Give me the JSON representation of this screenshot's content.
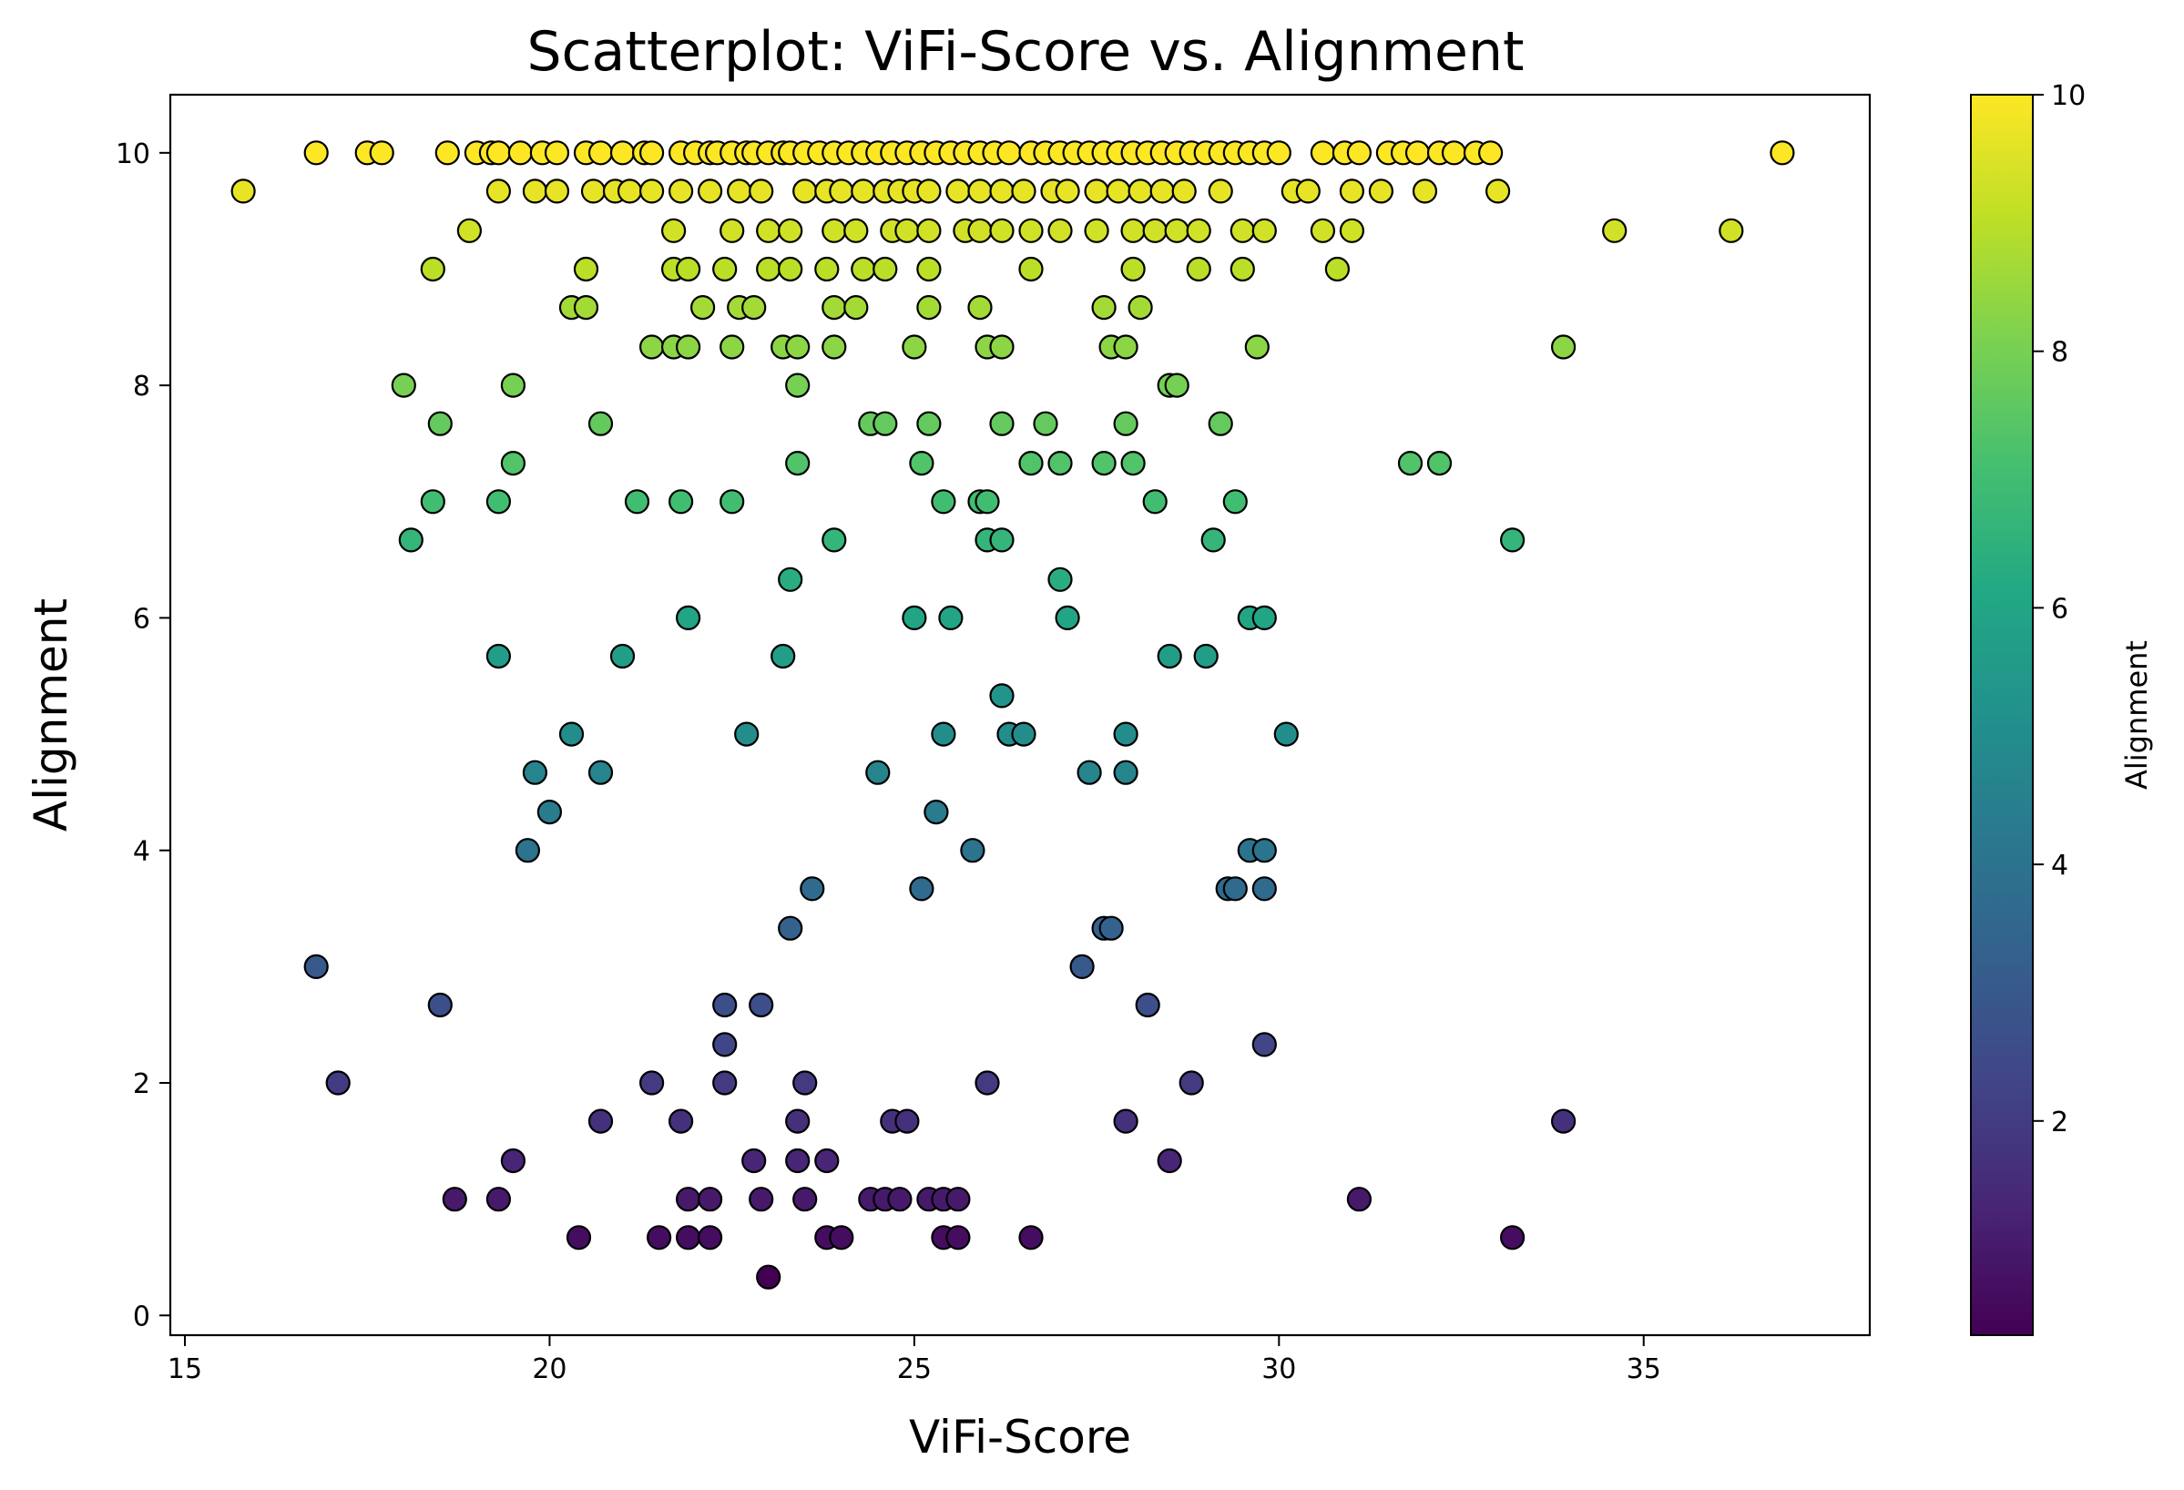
{
  "chart_data": {
    "type": "scatter",
    "title": "Scatterplot: ViFi-Score vs. Alignment",
    "xlabel": "ViFi-Score",
    "ylabel": "Alignment",
    "xlim": [
      14.8,
      38.1
    ],
    "ylim": [
      -0.17,
      10.5
    ],
    "xticks": [
      "15",
      "20",
      "25",
      "30",
      "35"
    ],
    "yticks": [
      "0",
      "2",
      "4",
      "6",
      "8",
      "10"
    ],
    "colorbar": {
      "label": "Alignment",
      "colormap": "viridis",
      "range": [
        0.33,
        10
      ],
      "ticks": [
        "2",
        "4",
        "6",
        "8",
        "10"
      ]
    },
    "marker_edge_color": "#000000",
    "grid": false,
    "points": [
      [
        15.8,
        9.67
      ],
      [
        16.8,
        10
      ],
      [
        17.5,
        10
      ],
      [
        17.7,
        10
      ],
      [
        18.6,
        10
      ],
      [
        19.0,
        10
      ],
      [
        19.2,
        10
      ],
      [
        19.3,
        10
      ],
      [
        19.6,
        10
      ],
      [
        19.9,
        10
      ],
      [
        20.1,
        10
      ],
      [
        20.5,
        10
      ],
      [
        20.7,
        10
      ],
      [
        21.0,
        10
      ],
      [
        21.3,
        10
      ],
      [
        21.4,
        10
      ],
      [
        21.8,
        10
      ],
      [
        22.0,
        10
      ],
      [
        22.2,
        10
      ],
      [
        22.3,
        10
      ],
      [
        22.5,
        10
      ],
      [
        22.7,
        10
      ],
      [
        22.8,
        10
      ],
      [
        23.0,
        10
      ],
      [
        23.2,
        10
      ],
      [
        23.3,
        10
      ],
      [
        23.5,
        10
      ],
      [
        23.7,
        10
      ],
      [
        23.9,
        10
      ],
      [
        24.1,
        10
      ],
      [
        24.3,
        10
      ],
      [
        24.5,
        10
      ],
      [
        24.7,
        10
      ],
      [
        24.9,
        10
      ],
      [
        25.1,
        10
      ],
      [
        25.3,
        10
      ],
      [
        25.5,
        10
      ],
      [
        25.7,
        10
      ],
      [
        25.9,
        10
      ],
      [
        26.1,
        10
      ],
      [
        26.3,
        10
      ],
      [
        26.6,
        10
      ],
      [
        26.8,
        10
      ],
      [
        27.0,
        10
      ],
      [
        27.2,
        10
      ],
      [
        27.4,
        10
      ],
      [
        27.6,
        10
      ],
      [
        27.8,
        10
      ],
      [
        28.0,
        10
      ],
      [
        28.2,
        10
      ],
      [
        28.4,
        10
      ],
      [
        28.6,
        10
      ],
      [
        28.8,
        10
      ],
      [
        29.0,
        10
      ],
      [
        29.2,
        10
      ],
      [
        29.4,
        10
      ],
      [
        29.6,
        10
      ],
      [
        29.8,
        10
      ],
      [
        30.0,
        10
      ],
      [
        30.6,
        10
      ],
      [
        30.9,
        10
      ],
      [
        31.1,
        10
      ],
      [
        31.5,
        10
      ],
      [
        31.7,
        10
      ],
      [
        31.9,
        10
      ],
      [
        32.2,
        10
      ],
      [
        32.4,
        10
      ],
      [
        32.7,
        10
      ],
      [
        32.9,
        10
      ],
      [
        36.9,
        10
      ],
      [
        19.3,
        9.67
      ],
      [
        19.8,
        9.67
      ],
      [
        20.1,
        9.67
      ],
      [
        20.6,
        9.67
      ],
      [
        20.9,
        9.67
      ],
      [
        21.1,
        9.67
      ],
      [
        21.4,
        9.67
      ],
      [
        21.8,
        9.67
      ],
      [
        22.2,
        9.67
      ],
      [
        22.6,
        9.67
      ],
      [
        22.9,
        9.67
      ],
      [
        23.5,
        9.67
      ],
      [
        23.8,
        9.67
      ],
      [
        24.0,
        9.67
      ],
      [
        24.3,
        9.67
      ],
      [
        24.6,
        9.67
      ],
      [
        24.8,
        9.67
      ],
      [
        25.0,
        9.67
      ],
      [
        25.2,
        9.67
      ],
      [
        25.6,
        9.67
      ],
      [
        25.9,
        9.67
      ],
      [
        26.2,
        9.67
      ],
      [
        26.5,
        9.67
      ],
      [
        26.9,
        9.67
      ],
      [
        27.1,
        9.67
      ],
      [
        27.5,
        9.67
      ],
      [
        27.8,
        9.67
      ],
      [
        28.1,
        9.67
      ],
      [
        28.4,
        9.67
      ],
      [
        28.7,
        9.67
      ],
      [
        29.2,
        9.67
      ],
      [
        30.2,
        9.67
      ],
      [
        30.4,
        9.67
      ],
      [
        31.0,
        9.67
      ],
      [
        31.4,
        9.67
      ],
      [
        32.0,
        9.67
      ],
      [
        33.0,
        9.67
      ],
      [
        18.9,
        9.33
      ],
      [
        21.7,
        9.33
      ],
      [
        22.5,
        9.33
      ],
      [
        23.0,
        9.33
      ],
      [
        23.3,
        9.33
      ],
      [
        23.9,
        9.33
      ],
      [
        24.2,
        9.33
      ],
      [
        24.7,
        9.33
      ],
      [
        24.9,
        9.33
      ],
      [
        25.2,
        9.33
      ],
      [
        25.7,
        9.33
      ],
      [
        25.9,
        9.33
      ],
      [
        26.2,
        9.33
      ],
      [
        26.6,
        9.33
      ],
      [
        27.0,
        9.33
      ],
      [
        27.5,
        9.33
      ],
      [
        28.0,
        9.33
      ],
      [
        28.3,
        9.33
      ],
      [
        28.6,
        9.33
      ],
      [
        28.9,
        9.33
      ],
      [
        29.5,
        9.33
      ],
      [
        29.8,
        9.33
      ],
      [
        30.6,
        9.33
      ],
      [
        31.0,
        9.33
      ],
      [
        34.6,
        9.33
      ],
      [
        36.2,
        9.33
      ],
      [
        18.4,
        9.0
      ],
      [
        20.5,
        9.0
      ],
      [
        21.7,
        9.0
      ],
      [
        21.9,
        9.0
      ],
      [
        22.4,
        9.0
      ],
      [
        23.0,
        9.0
      ],
      [
        23.3,
        9.0
      ],
      [
        23.8,
        9.0
      ],
      [
        24.3,
        9.0
      ],
      [
        24.6,
        9.0
      ],
      [
        25.2,
        9.0
      ],
      [
        26.6,
        9.0
      ],
      [
        28.0,
        9.0
      ],
      [
        28.9,
        9.0
      ],
      [
        29.5,
        9.0
      ],
      [
        30.8,
        9.0
      ],
      [
        20.3,
        8.67
      ],
      [
        20.5,
        8.67
      ],
      [
        22.1,
        8.67
      ],
      [
        22.6,
        8.67
      ],
      [
        22.8,
        8.67
      ],
      [
        23.9,
        8.67
      ],
      [
        24.2,
        8.67
      ],
      [
        25.2,
        8.67
      ],
      [
        25.9,
        8.67
      ],
      [
        27.6,
        8.67
      ],
      [
        28.1,
        8.67
      ],
      [
        21.4,
        8.33
      ],
      [
        21.7,
        8.33
      ],
      [
        21.9,
        8.33
      ],
      [
        22.5,
        8.33
      ],
      [
        23.2,
        8.33
      ],
      [
        23.4,
        8.33
      ],
      [
        23.9,
        8.33
      ],
      [
        25.0,
        8.33
      ],
      [
        26.0,
        8.33
      ],
      [
        26.2,
        8.33
      ],
      [
        27.7,
        8.33
      ],
      [
        27.9,
        8.33
      ],
      [
        29.7,
        8.33
      ],
      [
        33.9,
        8.33
      ],
      [
        18.0,
        8.0
      ],
      [
        19.5,
        8.0
      ],
      [
        23.4,
        8.0
      ],
      [
        28.5,
        8.0
      ],
      [
        28.6,
        8.0
      ],
      [
        18.5,
        7.67
      ],
      [
        20.7,
        7.67
      ],
      [
        24.4,
        7.67
      ],
      [
        24.6,
        7.67
      ],
      [
        25.2,
        7.67
      ],
      [
        26.2,
        7.67
      ],
      [
        26.8,
        7.67
      ],
      [
        27.9,
        7.67
      ],
      [
        29.2,
        7.67
      ],
      [
        19.5,
        7.33
      ],
      [
        23.4,
        7.33
      ],
      [
        25.1,
        7.33
      ],
      [
        26.6,
        7.33
      ],
      [
        27.0,
        7.33
      ],
      [
        27.6,
        7.33
      ],
      [
        28.0,
        7.33
      ],
      [
        31.8,
        7.33
      ],
      [
        32.2,
        7.33
      ],
      [
        18.4,
        7.0
      ],
      [
        19.3,
        7.0
      ],
      [
        21.2,
        7.0
      ],
      [
        21.8,
        7.0
      ],
      [
        22.5,
        7.0
      ],
      [
        25.4,
        7.0
      ],
      [
        25.9,
        7.0
      ],
      [
        26.0,
        7.0
      ],
      [
        28.3,
        7.0
      ],
      [
        29.4,
        7.0
      ],
      [
        18.1,
        6.67
      ],
      [
        23.9,
        6.67
      ],
      [
        26.0,
        6.67
      ],
      [
        26.2,
        6.67
      ],
      [
        29.1,
        6.67
      ],
      [
        33.2,
        6.67
      ],
      [
        23.3,
        6.33
      ],
      [
        27.0,
        6.33
      ],
      [
        21.9,
        6.0
      ],
      [
        25.0,
        6.0
      ],
      [
        25.5,
        6.0
      ],
      [
        27.1,
        6.0
      ],
      [
        29.6,
        6.0
      ],
      [
        29.8,
        6.0
      ],
      [
        19.3,
        5.67
      ],
      [
        21.0,
        5.67
      ],
      [
        23.2,
        5.67
      ],
      [
        28.5,
        5.67
      ],
      [
        29.0,
        5.67
      ],
      [
        26.2,
        5.33
      ],
      [
        20.3,
        5.0
      ],
      [
        22.7,
        5.0
      ],
      [
        25.4,
        5.0
      ],
      [
        26.3,
        5.0
      ],
      [
        26.5,
        5.0
      ],
      [
        27.9,
        5.0
      ],
      [
        30.1,
        5.0
      ],
      [
        19.8,
        4.67
      ],
      [
        20.7,
        4.67
      ],
      [
        24.5,
        4.67
      ],
      [
        27.4,
        4.67
      ],
      [
        27.9,
        4.67
      ],
      [
        20.0,
        4.33
      ],
      [
        25.3,
        4.33
      ],
      [
        19.7,
        4.0
      ],
      [
        25.8,
        4.0
      ],
      [
        29.6,
        4.0
      ],
      [
        29.8,
        4.0
      ],
      [
        23.6,
        3.67
      ],
      [
        25.1,
        3.67
      ],
      [
        29.3,
        3.67
      ],
      [
        29.4,
        3.67
      ],
      [
        29.8,
        3.67
      ],
      [
        23.3,
        3.33
      ],
      [
        27.6,
        3.33
      ],
      [
        27.7,
        3.33
      ],
      [
        16.8,
        3.0
      ],
      [
        27.3,
        3.0
      ],
      [
        18.5,
        2.67
      ],
      [
        22.4,
        2.67
      ],
      [
        22.9,
        2.67
      ],
      [
        28.2,
        2.67
      ],
      [
        22.4,
        2.33
      ],
      [
        29.8,
        2.33
      ],
      [
        17.1,
        2.0
      ],
      [
        21.4,
        2.0
      ],
      [
        22.4,
        2.0
      ],
      [
        23.5,
        2.0
      ],
      [
        26.0,
        2.0
      ],
      [
        28.8,
        2.0
      ],
      [
        20.7,
        1.67
      ],
      [
        21.8,
        1.67
      ],
      [
        23.4,
        1.67
      ],
      [
        24.7,
        1.67
      ],
      [
        24.9,
        1.67
      ],
      [
        27.9,
        1.67
      ],
      [
        33.9,
        1.67
      ],
      [
        19.5,
        1.33
      ],
      [
        22.8,
        1.33
      ],
      [
        23.4,
        1.33
      ],
      [
        23.8,
        1.33
      ],
      [
        28.5,
        1.33
      ],
      [
        18.7,
        1.0
      ],
      [
        19.3,
        1.0
      ],
      [
        21.9,
        1.0
      ],
      [
        22.2,
        1.0
      ],
      [
        22.9,
        1.0
      ],
      [
        23.5,
        1.0
      ],
      [
        24.4,
        1.0
      ],
      [
        24.6,
        1.0
      ],
      [
        24.8,
        1.0
      ],
      [
        25.2,
        1.0
      ],
      [
        25.4,
        1.0
      ],
      [
        25.6,
        1.0
      ],
      [
        31.1,
        1.0
      ],
      [
        20.4,
        0.67
      ],
      [
        21.5,
        0.67
      ],
      [
        21.9,
        0.67
      ],
      [
        22.2,
        0.67
      ],
      [
        23.8,
        0.67
      ],
      [
        24.0,
        0.67
      ],
      [
        25.4,
        0.67
      ],
      [
        25.6,
        0.67
      ],
      [
        26.6,
        0.67
      ],
      [
        33.2,
        0.67
      ],
      [
        23.0,
        0.33
      ]
    ]
  }
}
